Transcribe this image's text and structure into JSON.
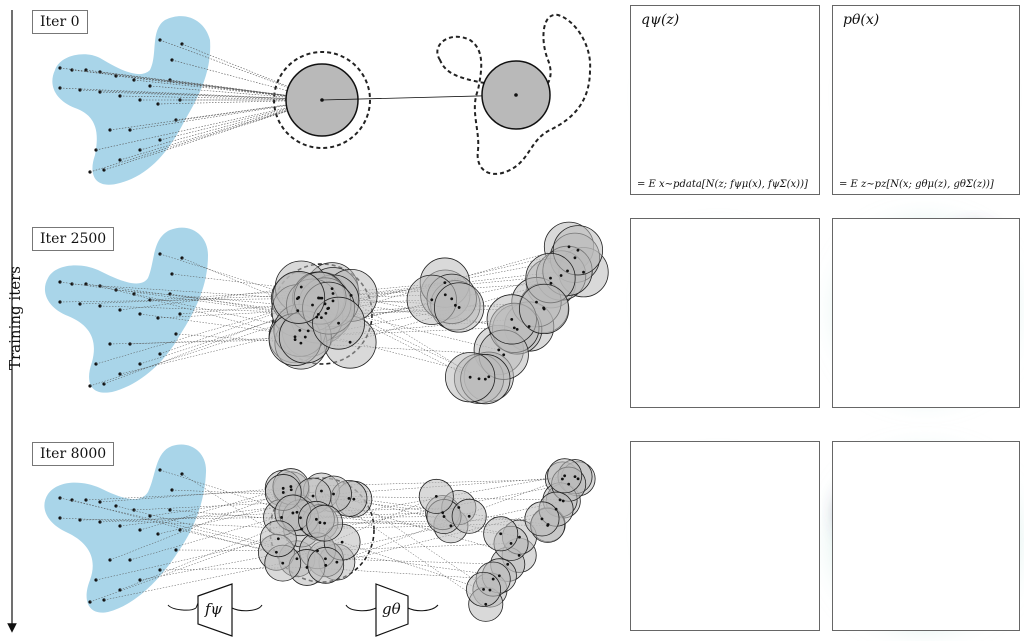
{
  "rows": [
    {
      "label": "Iter 0"
    },
    {
      "label": "Iter 2500"
    },
    {
      "label": "Iter 8000"
    }
  ],
  "y_axis_label": "Training iters",
  "panels": {
    "q_title": "qψ(z)",
    "p_title": "pθ(x)",
    "q_formula": "= E x∼pdata[N(z; fψμ(x), fψΣ(x))]",
    "p_formula": "= E z∼pz[N(x; gθμ(z), gθΣ(z))]"
  },
  "encoder_label": "fψ",
  "decoder_label": "gθ",
  "colors": {
    "data_blob": "#a9d5e9",
    "circle_fill": "#b9b9b9",
    "density_dark": "#1e1030",
    "density_mid": "#5a4a7a",
    "density_light": "#bfe3dc"
  }
}
